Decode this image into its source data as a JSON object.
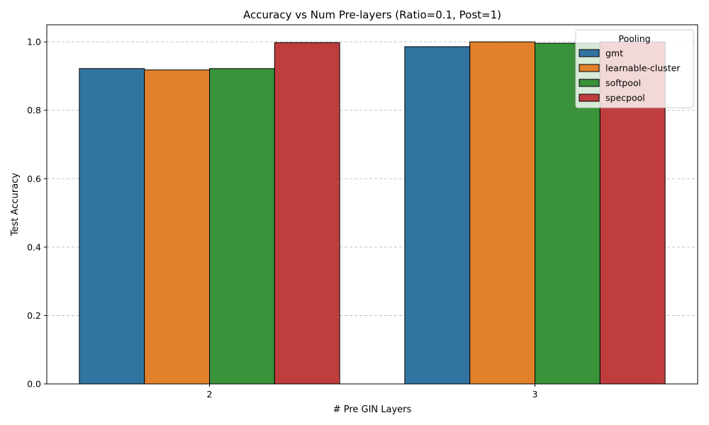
{
  "chart_data": {
    "type": "bar",
    "title": "Accuracy vs Num Pre-layers (Ratio=0.1, Post=1)",
    "xlabel": "# Pre GIN Layers",
    "ylabel": "Test Accuracy",
    "categories": [
      "2",
      "3"
    ],
    "ylim": [
      0,
      1.05
    ],
    "yticks": [
      0.0,
      0.2,
      0.4,
      0.6,
      0.8,
      1.0
    ],
    "ytick_labels": [
      "0.0",
      "0.2",
      "0.4",
      "0.6",
      "0.8",
      "1.0"
    ],
    "grid": "y-dashed",
    "legend": {
      "title": "Pooling",
      "placement": "top-right"
    },
    "series": [
      {
        "name": "gmt",
        "color": "#3274a1",
        "values": [
          0.922,
          0.986
        ]
      },
      {
        "name": "learnable-cluster",
        "color": "#e1812c",
        "values": [
          0.918,
          1.0
        ]
      },
      {
        "name": "softpool",
        "color": "#3a923a",
        "values": [
          0.922,
          0.996
        ]
      },
      {
        "name": "specpool",
        "color": "#c03d3e",
        "values": [
          0.998,
          1.0
        ]
      }
    ]
  }
}
